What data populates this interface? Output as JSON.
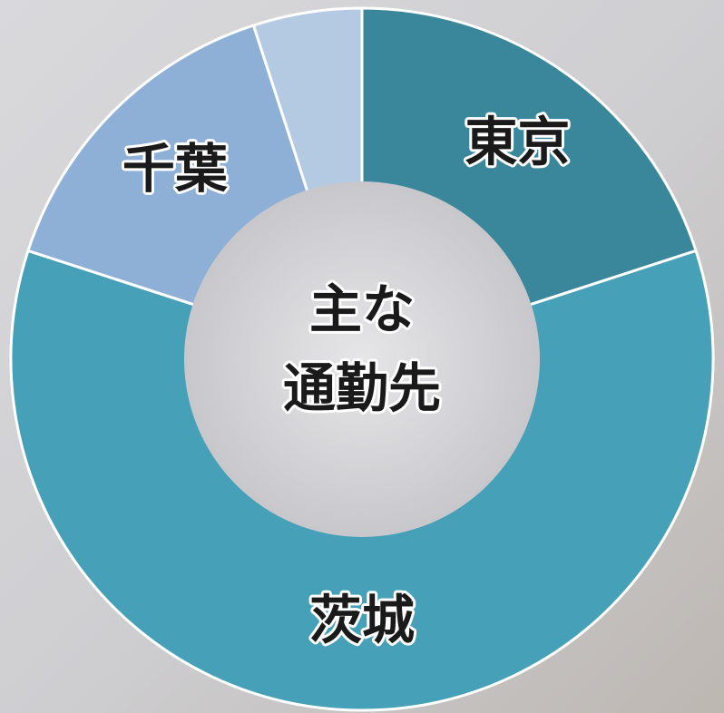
{
  "chart_data": {
    "type": "donut",
    "center_label": [
      "主な",
      "通勤先"
    ],
    "categories": [
      "東京",
      "茨城",
      "千葉",
      null
    ],
    "values": [
      20,
      60,
      15,
      5
    ],
    "colors": [
      "#3a879b",
      "#46a0b8",
      "#8fb0d6",
      "#b4cae3"
    ]
  }
}
